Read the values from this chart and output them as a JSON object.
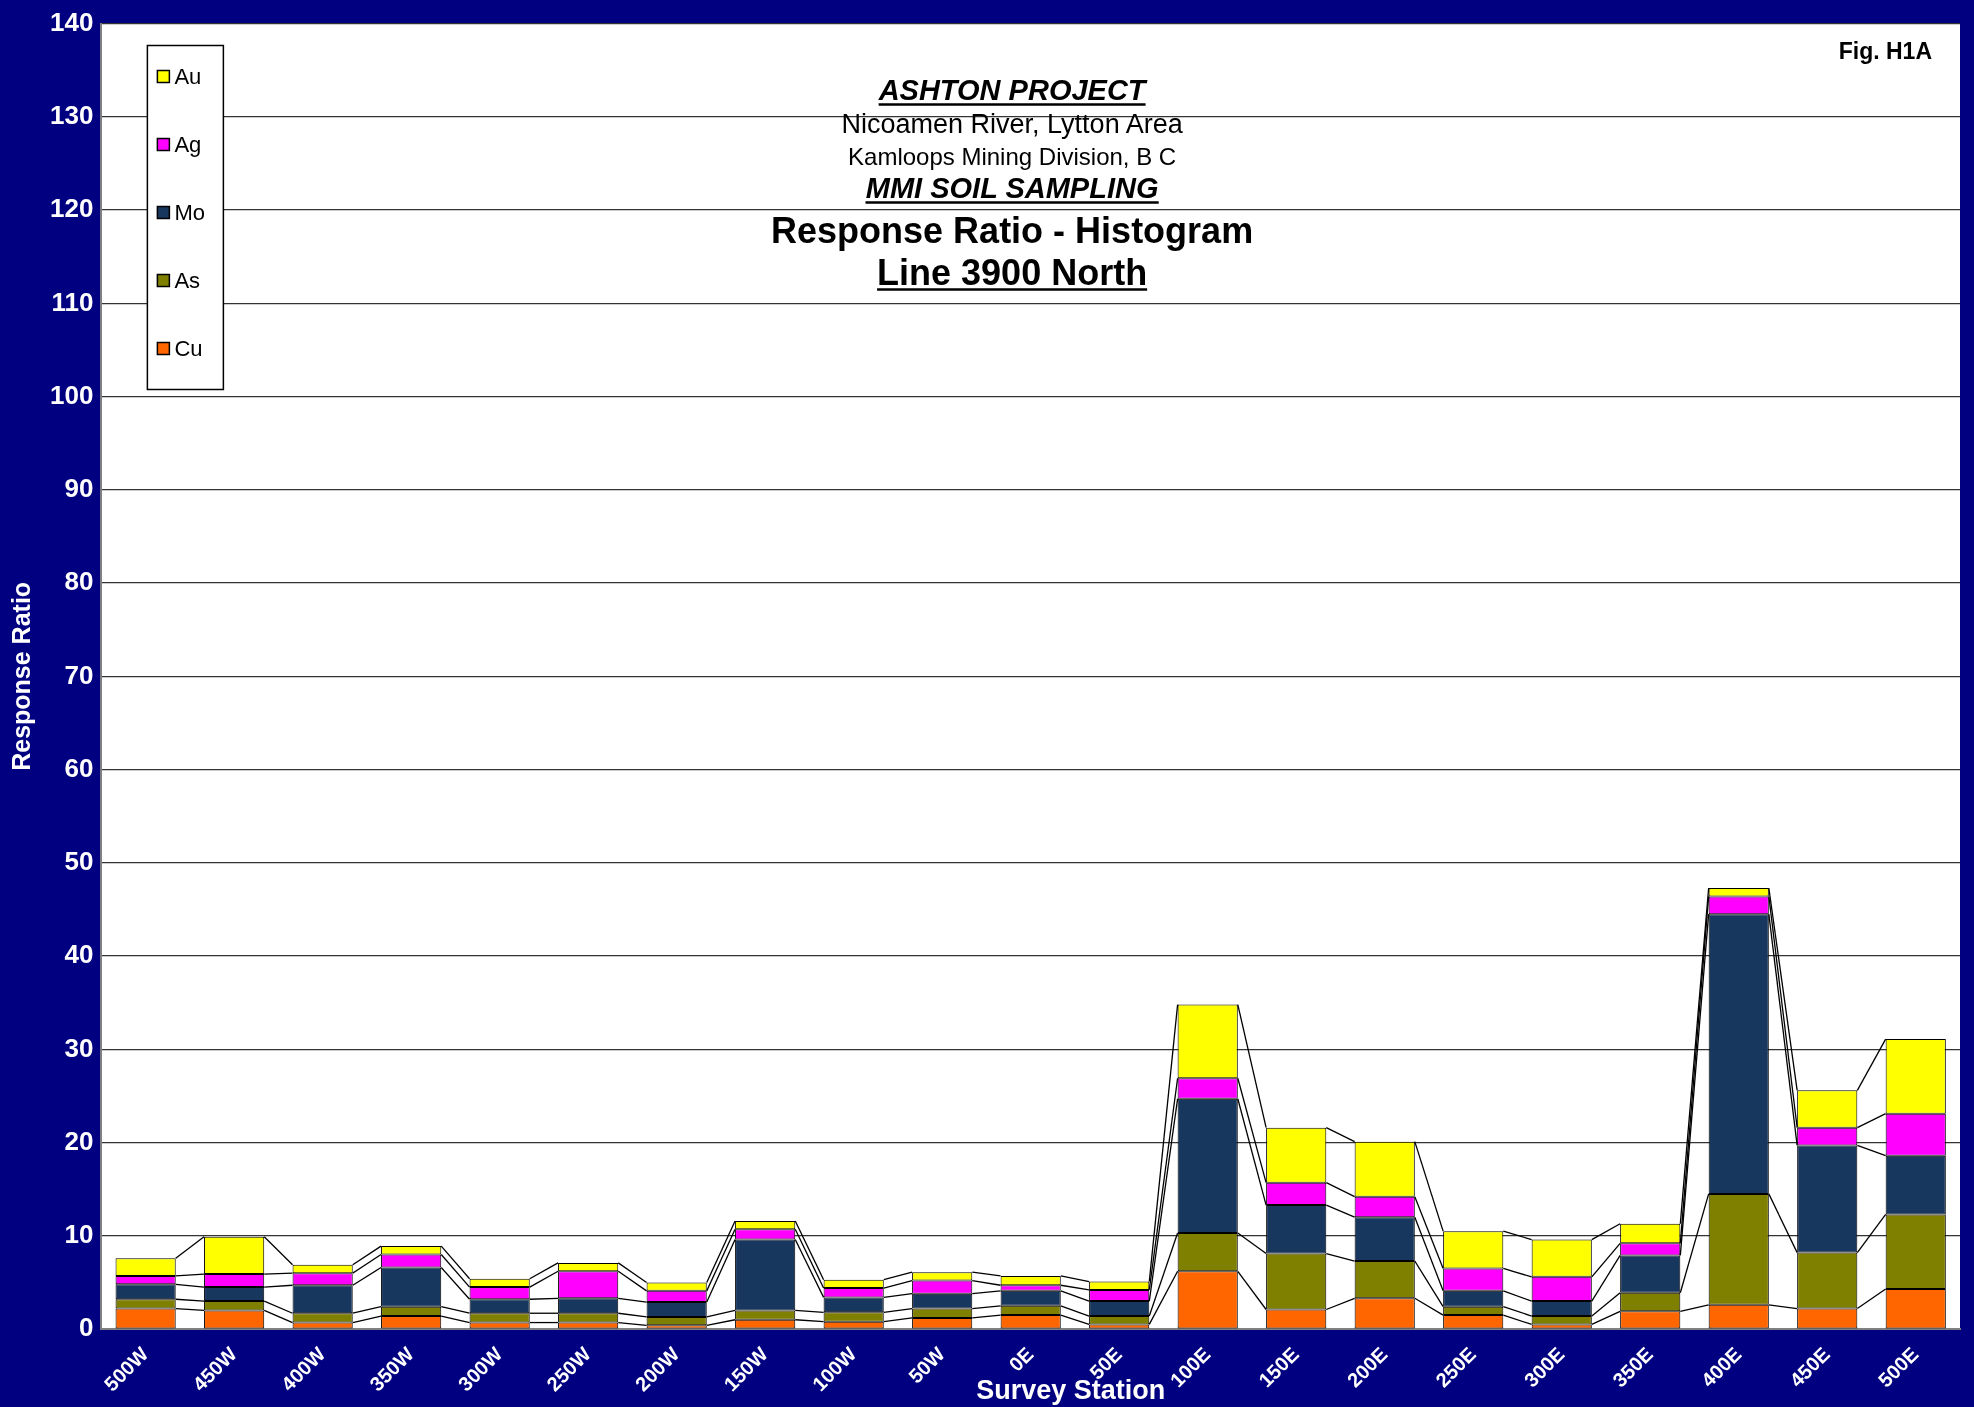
{
  "chart_data": {
    "type": "bar",
    "stacked": true,
    "title": "Response Ratio - Histogram",
    "subtitle": "Line 3900 North",
    "xlabel": "Survey Station",
    "ylabel": "Response Ratio",
    "annotations": [
      "ASHTON PROJECT",
      "Nicoamen River, Lytton Area",
      "Kamloops Mining Division, B C",
      "MMI SOIL SAMPLING",
      "Fig. H1A"
    ],
    "categories": [
      "500W",
      "450W",
      "400W",
      "350W",
      "300W",
      "250W",
      "200W",
      "150W",
      "100W",
      "50W",
      "0E",
      "50E",
      "100E",
      "150E",
      "200E",
      "250E",
      "300E",
      "350E",
      "400E",
      "450E",
      "500E"
    ],
    "ylim": [
      0,
      140
    ],
    "yticks": [
      0,
      10,
      20,
      30,
      40,
      50,
      60,
      70,
      80,
      90,
      100,
      110,
      120,
      130,
      140
    ],
    "grid": "y",
    "legend": "top left",
    "series": [
      {
        "name": "Cu",
        "color": "#ff6600",
        "values": [
          2.2,
          2.0,
          0.7,
          1.4,
          0.7,
          0.7,
          0.4,
          1.0,
          0.8,
          1.2,
          1.5,
          0.5,
          6.2,
          2.1,
          3.3,
          1.5,
          0.5,
          1.9,
          2.6,
          2.2,
          4.3
        ]
      },
      {
        "name": "As",
        "color": "#808000",
        "values": [
          1.0,
          1.0,
          1.0,
          1.0,
          1.0,
          1.0,
          0.9,
          1.0,
          1.0,
          1.0,
          1.0,
          0.9,
          4.1,
          6.0,
          4.0,
          0.9,
          0.9,
          2.0,
          11.9,
          6.0,
          8.0
        ]
      },
      {
        "name": "Mo",
        "color": "#17375e",
        "values": [
          1.6,
          1.5,
          3.0,
          4.2,
          1.5,
          1.6,
          1.6,
          7.6,
          1.6,
          1.6,
          1.6,
          1.6,
          14.4,
          5.2,
          4.7,
          1.7,
          1.6,
          4.0,
          30.0,
          11.5,
          6.3
        ]
      },
      {
        "name": "Ag",
        "color": "#ff00ff",
        "values": [
          0.9,
          1.4,
          1.3,
          1.4,
          1.3,
          2.9,
          1.2,
          1.1,
          1.0,
          1.4,
          0.6,
          1.2,
          2.2,
          2.4,
          2.2,
          2.4,
          2.6,
          1.3,
          1.9,
          1.9,
          4.5
        ]
      },
      {
        "name": "Au",
        "color": "#ffff00",
        "values": [
          1.9,
          4.0,
          0.9,
          0.9,
          0.9,
          0.9,
          0.9,
          0.9,
          0.9,
          0.9,
          1.0,
          0.9,
          7.9,
          5.9,
          5.9,
          4.0,
          4.0,
          2.1,
          0.9,
          4.0,
          8.0
        ]
      }
    ]
  }
}
